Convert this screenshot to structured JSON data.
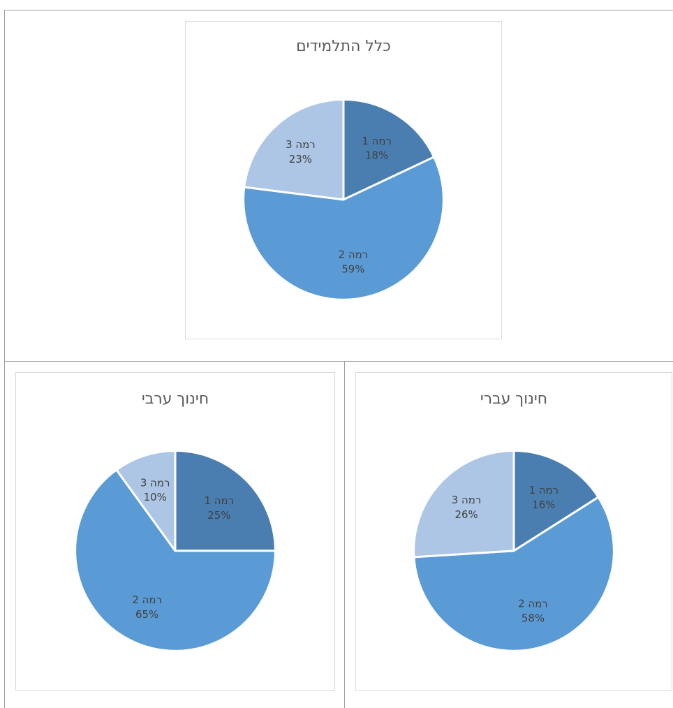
{
  "colors": {
    "level1": "#4a7eb0",
    "level2": "#5b9bd5",
    "level3": "#adc6e5",
    "slice_border": "#ffffff"
  },
  "chart_data": [
    {
      "type": "pie",
      "title": "כלל התלמידים",
      "series": [
        {
          "name": "רמה 1",
          "value": 18,
          "label": "18%"
        },
        {
          "name": "רמה 2",
          "value": 59,
          "label": "59%"
        },
        {
          "name": "רמה 3",
          "value": 23,
          "label": "23%"
        }
      ]
    },
    {
      "type": "pie",
      "title": "חינוך ערבי",
      "series": [
        {
          "name": "רמה 1",
          "value": 25,
          "label": "25%"
        },
        {
          "name": "רמה 2",
          "value": 65,
          "label": "65%"
        },
        {
          "name": "רמה 3",
          "value": 10,
          "label": "10%"
        }
      ]
    },
    {
      "type": "pie",
      "title": "חינוך עברי",
      "series": [
        {
          "name": "רמה 1",
          "value": 16,
          "label": "16%"
        },
        {
          "name": "רמה 2",
          "value": 58,
          "label": "58%"
        },
        {
          "name": "רמה 3",
          "value": 26,
          "label": "26%"
        }
      ]
    }
  ]
}
